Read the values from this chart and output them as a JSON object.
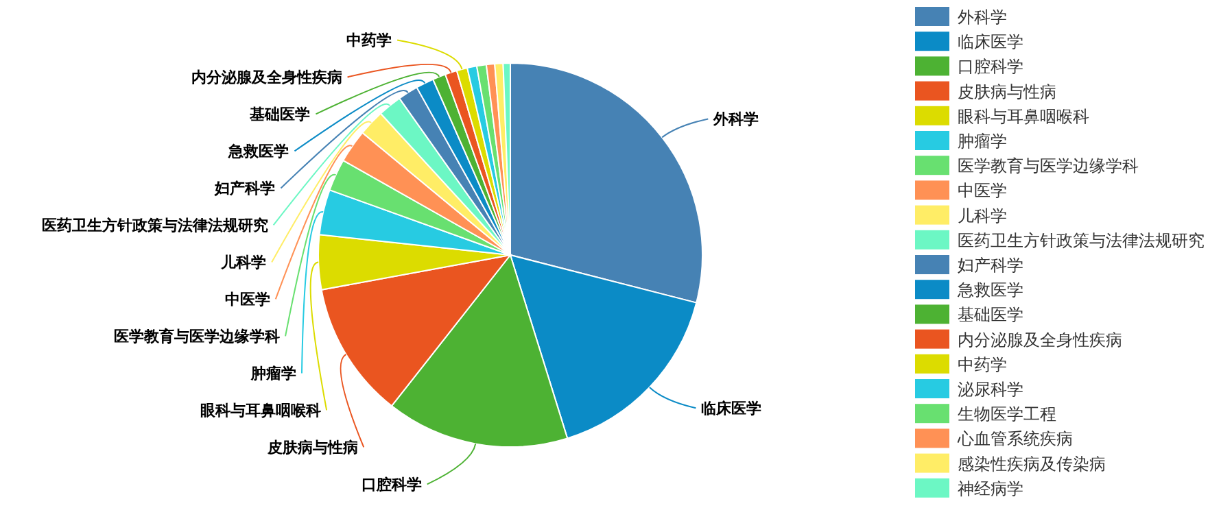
{
  "chart_data": {
    "type": "pie",
    "legend": "right",
    "categories": [
      "外科学",
      "临床医学",
      "口腔科学",
      "皮肤病与性病",
      "眼科与耳鼻咽喉科",
      "肿瘤学",
      "医学教育与医学边缘学科",
      "中医学",
      "儿科学",
      "医药卫生方针政策与法律法规研究",
      "妇产科学",
      "急救医学",
      "基础医学",
      "内分泌腺及全身性疾病",
      "中药学",
      "泌尿科学",
      "生物医学工程",
      "心血管系统疾病",
      "感染性疾病及传染病",
      "神经病学"
    ],
    "values": [
      29.0,
      16.2,
      15.4,
      11.5,
      4.6,
      3.8,
      2.7,
      2.8,
      2.2,
      2.0,
      1.7,
      1.5,
      1.1,
      1.0,
      0.9,
      0.8,
      0.8,
      0.7,
      0.7,
      0.6
    ],
    "colors": [
      "#4682b4",
      "#0b8bc6",
      "#4db233",
      "#ea5520",
      "#dcdc00",
      "#27cbe2",
      "#68e070",
      "#ff9155",
      "#ffed66",
      "#6cf7c4",
      "#4682b4",
      "#0b8bc6",
      "#4db233",
      "#ea5520",
      "#dcdc00",
      "#27cbe2",
      "#68e070",
      "#ff9155",
      "#ffed66",
      "#6cf7c4"
    ]
  }
}
